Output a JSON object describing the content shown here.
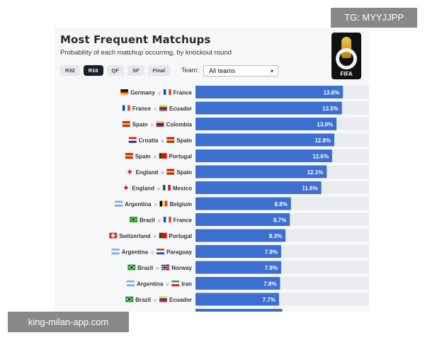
{
  "header": {
    "title": "Most Frequent Matchups",
    "subtitle": "Probability of each matchup occurring, by knockout round",
    "logo_text": "FIFA"
  },
  "rounds": [
    "R32",
    "R16",
    "QF",
    "SF",
    "Final"
  ],
  "active_round": "R16",
  "team_filter": {
    "label": "Team:",
    "value": "All teams"
  },
  "watermarks": {
    "top": "TG: MYYJJPP",
    "bottom": "king-milan-app.com"
  },
  "colors": {
    "bar": "#3c6fd0",
    "track": "#e9ebef",
    "active_tab": "#1a1f2e"
  },
  "chart_data": {
    "type": "bar",
    "orientation": "horizontal",
    "title": "Most Frequent Matchups",
    "subtitle": "Probability of each matchup occurring, by knockout round",
    "xlim": [
      0,
      16
    ],
    "separator": "v",
    "categories": [
      [
        "Germany",
        "France"
      ],
      [
        "France",
        "Ecuador"
      ],
      [
        "Spain",
        "Colombia"
      ],
      [
        "Croatia",
        "Spain"
      ],
      [
        "Spain",
        "Portugal"
      ],
      [
        "England",
        "Spain"
      ],
      [
        "England",
        "Mexico"
      ],
      [
        "Argentina",
        "Belgium"
      ],
      [
        "Brazil",
        "France"
      ],
      [
        "Switzerland",
        "Portugal"
      ],
      [
        "Argentina",
        "Paraguay"
      ],
      [
        "Brazil",
        "Norway"
      ],
      [
        "Argentina",
        "Iran"
      ],
      [
        "Brazil",
        "Ecuador"
      ]
    ],
    "values": [
      13.6,
      13.5,
      13.0,
      12.8,
      12.6,
      12.1,
      11.6,
      8.8,
      8.7,
      8.3,
      7.9,
      7.9,
      7.8,
      7.7
    ],
    "value_labels": [
      "13.6%",
      "13.5%",
      "13.0%",
      "12.8%",
      "12.6%",
      "12.1%",
      "11.6%",
      "8.8%",
      "8.7%",
      "8.3%",
      "7.9%",
      "7.9%",
      "7.8%",
      "7.7%"
    ]
  },
  "flags": {
    "Germany": [
      "#000000",
      "#dd0000",
      "#ffce00",
      "h"
    ],
    "France": [
      "#0055a4",
      "#ffffff",
      "#ef4135",
      "v"
    ],
    "Ecuador": [
      "#ffd100",
      "#034ea2",
      "#ed1c24",
      "h"
    ],
    "Spain": [
      "#c60b1e",
      "#ffc400",
      "#c60b1e",
      "h"
    ],
    "Colombia": [
      "#fcd116",
      "#003893",
      "#ce1126",
      "h"
    ],
    "Croatia": [
      "#ff0000",
      "#ffffff",
      "#171796",
      "h"
    ],
    "Portugal": [
      "#006600",
      "#ff0000",
      "#ff0000",
      "v"
    ],
    "England": [
      "#ffffff",
      "#ce1124",
      "#ffffff",
      "cross"
    ],
    "Mexico": [
      "#006847",
      "#ffffff",
      "#ce1126",
      "v"
    ],
    "Argentina": [
      "#74acdf",
      "#ffffff",
      "#74acdf",
      "h"
    ],
    "Belgium": [
      "#000000",
      "#fdda24",
      "#ef3340",
      "v"
    ],
    "Brazil": [
      "#009c3b",
      "#ffdf00",
      "#002776",
      "diamond"
    ],
    "Switzerland": [
      "#d52b1e",
      "#ffffff",
      "#d52b1e",
      "cross"
    ],
    "Paraguay": [
      "#d52b1e",
      "#ffffff",
      "#0038a8",
      "h"
    ],
    "Norway": [
      "#ba0c2f",
      "#00205b",
      "#ffffff",
      "nordic"
    ],
    "Iran": [
      "#239f40",
      "#ffffff",
      "#da0000",
      "h"
    ]
  }
}
